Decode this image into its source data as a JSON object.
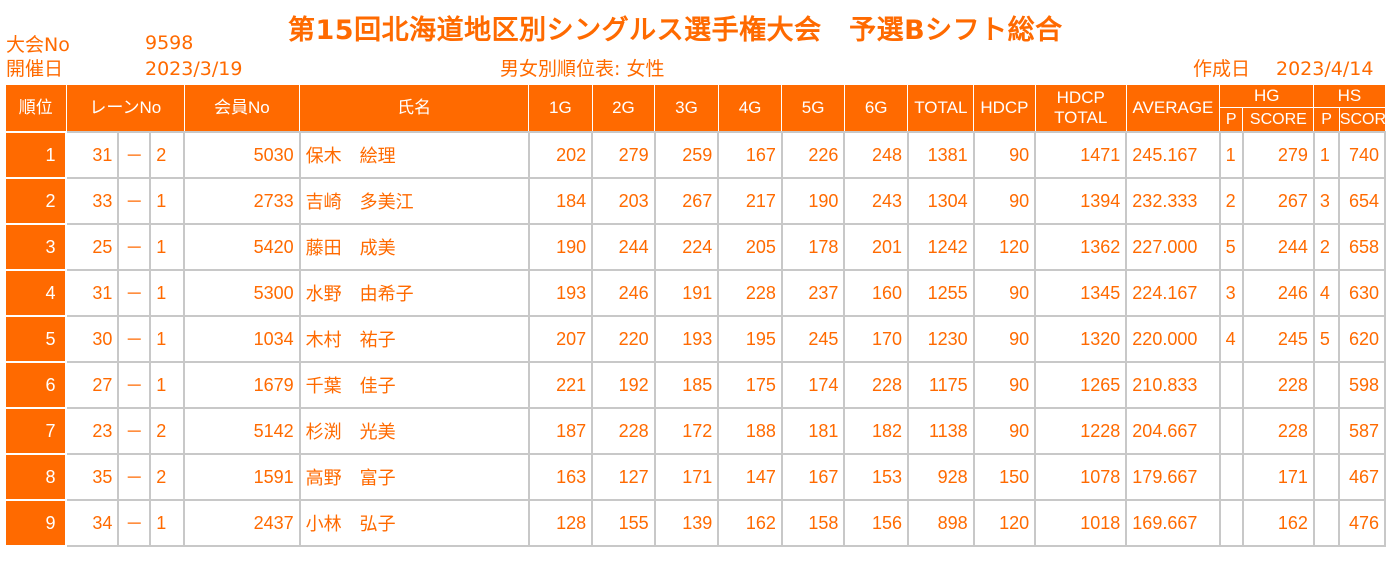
{
  "header": {
    "tournament_no_label": "大会No",
    "tournament_no": "9598",
    "date_label": "開催日",
    "date": "2023/3/19",
    "title": "第15回北海道地区別シングルス選手権大会　予選Bシフト総合",
    "subtitle": "男女別順位表: 女性",
    "created_label": "作成日",
    "created_date": "2023/4/14"
  },
  "columns": {
    "rank": "順位",
    "lane": "レーンNo",
    "member": "会員No",
    "name": "氏名",
    "g1": "1G",
    "g2": "2G",
    "g3": "3G",
    "g4": "4G",
    "g5": "5G",
    "g6": "6G",
    "total": "TOTAL",
    "hdcp": "HDCP",
    "hdcp_total_1": "HDCP",
    "hdcp_total_2": "TOTAL",
    "average": "AVERAGE",
    "hg": "HG",
    "hs": "HS",
    "p": "P",
    "score": "SCORE"
  },
  "rows": [
    {
      "rank": "1",
      "lane": "31",
      "sep": "－",
      "pos": "2",
      "member": "5030",
      "name": "保木　絵理",
      "g1": "202",
      "g2": "279",
      "g3": "259",
      "g4": "167",
      "g5": "226",
      "g6": "248",
      "total": "1381",
      "hdcp": "90",
      "hdcp_total": "1471",
      "average": "245.167",
      "hg_p": "1",
      "hg_score": "279",
      "hs_p": "1",
      "hs_score": "740"
    },
    {
      "rank": "2",
      "lane": "33",
      "sep": "－",
      "pos": "1",
      "member": "2733",
      "name": "吉崎　多美江",
      "g1": "184",
      "g2": "203",
      "g3": "267",
      "g4": "217",
      "g5": "190",
      "g6": "243",
      "total": "1304",
      "hdcp": "90",
      "hdcp_total": "1394",
      "average": "232.333",
      "hg_p": "2",
      "hg_score": "267",
      "hs_p": "3",
      "hs_score": "654"
    },
    {
      "rank": "3",
      "lane": "25",
      "sep": "－",
      "pos": "1",
      "member": "5420",
      "name": "藤田　成美",
      "g1": "190",
      "g2": "244",
      "g3": "224",
      "g4": "205",
      "g5": "178",
      "g6": "201",
      "total": "1242",
      "hdcp": "120",
      "hdcp_total": "1362",
      "average": "227.000",
      "hg_p": "5",
      "hg_score": "244",
      "hs_p": "2",
      "hs_score": "658"
    },
    {
      "rank": "4",
      "lane": "31",
      "sep": "－",
      "pos": "1",
      "member": "5300",
      "name": "水野　由希子",
      "g1": "193",
      "g2": "246",
      "g3": "191",
      "g4": "228",
      "g5": "237",
      "g6": "160",
      "total": "1255",
      "hdcp": "90",
      "hdcp_total": "1345",
      "average": "224.167",
      "hg_p": "3",
      "hg_score": "246",
      "hs_p": "4",
      "hs_score": "630"
    },
    {
      "rank": "5",
      "lane": "30",
      "sep": "－",
      "pos": "1",
      "member": "1034",
      "name": "木村　祐子",
      "g1": "207",
      "g2": "220",
      "g3": "193",
      "g4": "195",
      "g5": "245",
      "g6": "170",
      "total": "1230",
      "hdcp": "90",
      "hdcp_total": "1320",
      "average": "220.000",
      "hg_p": "4",
      "hg_score": "245",
      "hs_p": "5",
      "hs_score": "620"
    },
    {
      "rank": "6",
      "lane": "27",
      "sep": "－",
      "pos": "1",
      "member": "1679",
      "name": "千葉　佳子",
      "g1": "221",
      "g2": "192",
      "g3": "185",
      "g4": "175",
      "g5": "174",
      "g6": "228",
      "total": "1175",
      "hdcp": "90",
      "hdcp_total": "1265",
      "average": "210.833",
      "hg_p": "",
      "hg_score": "228",
      "hs_p": "",
      "hs_score": "598"
    },
    {
      "rank": "7",
      "lane": "23",
      "sep": "－",
      "pos": "2",
      "member": "5142",
      "name": "杉渕　光美",
      "g1": "187",
      "g2": "228",
      "g3": "172",
      "g4": "188",
      "g5": "181",
      "g6": "182",
      "total": "1138",
      "hdcp": "90",
      "hdcp_total": "1228",
      "average": "204.667",
      "hg_p": "",
      "hg_score": "228",
      "hs_p": "",
      "hs_score": "587"
    },
    {
      "rank": "8",
      "lane": "35",
      "sep": "－",
      "pos": "2",
      "member": "1591",
      "name": "高野　富子",
      "g1": "163",
      "g2": "127",
      "g3": "171",
      "g4": "147",
      "g5": "167",
      "g6": "153",
      "total": "928",
      "hdcp": "150",
      "hdcp_total": "1078",
      "average": "179.667",
      "hg_p": "",
      "hg_score": "171",
      "hs_p": "",
      "hs_score": "467"
    },
    {
      "rank": "9",
      "lane": "34",
      "sep": "－",
      "pos": "1",
      "member": "2437",
      "name": "小林　弘子",
      "g1": "128",
      "g2": "155",
      "g3": "139",
      "g4": "162",
      "g5": "158",
      "g6": "156",
      "total": "898",
      "hdcp": "120",
      "hdcp_total": "1018",
      "average": "169.667",
      "hg_p": "",
      "hg_score": "162",
      "hs_p": "",
      "hs_score": "476"
    }
  ],
  "colors": {
    "accent": "#ff6a00",
    "grid": "#c8c8c8",
    "header_text": "#ffffff"
  }
}
